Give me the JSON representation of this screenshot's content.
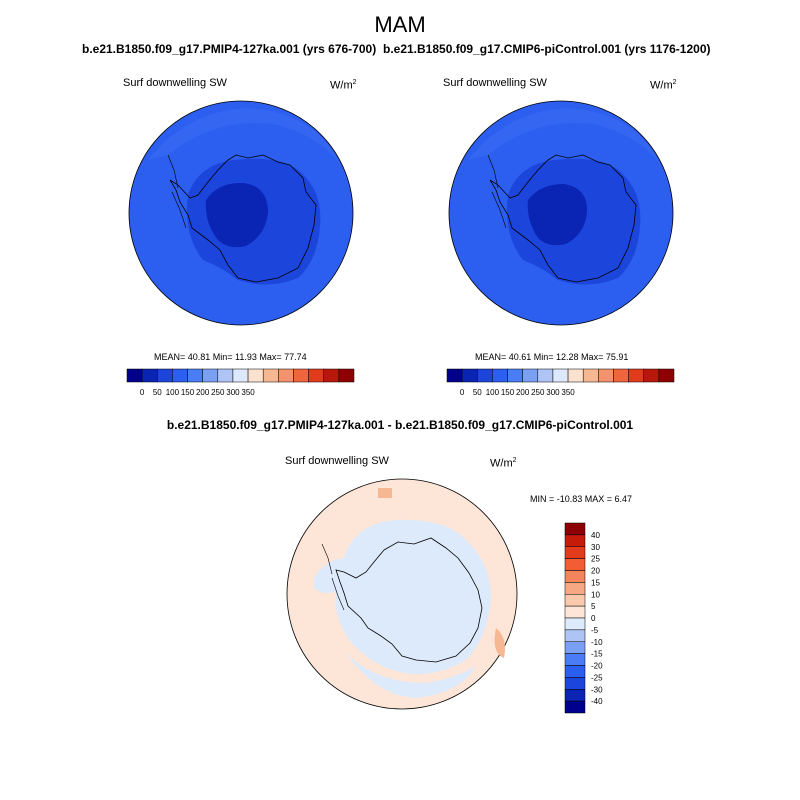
{
  "title": "MAM",
  "panels": [
    {
      "case_title": "b.e21.B1850.f09_g17.PMIP4-127ka.001 (yrs 676-700)",
      "variable": "Surf downwelling SW",
      "units_base": "W/m",
      "units_exp": "2",
      "stats": "MEAN=  40.81  Min=  11.93  Max=  77.74"
    },
    {
      "case_title": "b.e21.B1850.f09_g17.CMIP6-piControl.001 (yrs 1176-1200)",
      "variable": "Surf downwelling SW",
      "units_base": "W/m",
      "units_exp": "2",
      "stats": "MEAN=  40.61  Min=  12.28  Max=  75.91"
    }
  ],
  "colorbar_top": {
    "labels": [
      "0",
      "50",
      "100",
      "150",
      "200",
      "250",
      "300",
      "350"
    ],
    "colors": [
      "#00008c",
      "#0a24b4",
      "#1c45dc",
      "#2c5ef0",
      "#4a7df5",
      "#7aa0f5",
      "#aec4f4",
      "#dce8fb",
      "#fbe2d0",
      "#f6b893",
      "#f3926c",
      "#f0663c",
      "#e23b1c",
      "#b8180c",
      "#8c0004"
    ]
  },
  "diff_panel": {
    "title": "b.e21.B1850.f09_g17.PMIP4-127ka.001 - b.e21.B1850.f09_g17.CMIP6-piControl.001",
    "variable": "Surf downwelling SW",
    "units_base": "W/m",
    "units_exp": "2",
    "minmax": "MIN = -10.83 MAX =   6.47"
  },
  "colorbar_diff": {
    "labels": [
      "40",
      "30",
      "25",
      "20",
      "15",
      "10",
      "5",
      "0",
      "-5",
      "-10",
      "-15",
      "-20",
      "-25",
      "-30",
      "-40"
    ],
    "colors": [
      "#8c0004",
      "#c41b0a",
      "#e23b1c",
      "#f25d35",
      "#f3855c",
      "#f6a885",
      "#fac9ac",
      "#fde6d8",
      "#ddeafb",
      "#aec4f4",
      "#7aa0f5",
      "#4a7df5",
      "#2c5ef0",
      "#1c45dc",
      "#0a24b4",
      "#00008c"
    ]
  },
  "map_colors": {
    "ocean_top": "#2c5ef0",
    "ocean_outer": "#3566f2",
    "ice_mid": "#1c45dc",
    "interior": "#0a24b4",
    "diff_pos": "#fde6d8",
    "diff_neg": "#ddeafb",
    "diff_strong": "#f6b893"
  }
}
